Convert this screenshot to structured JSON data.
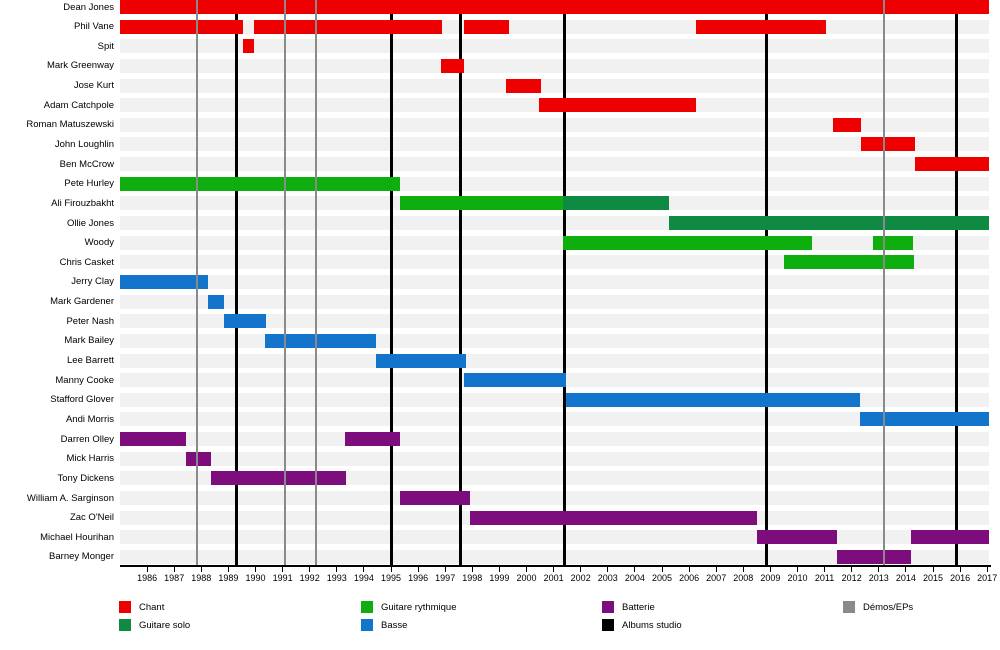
{
  "chart_data": {
    "type": "timeline",
    "title": "",
    "x_axis": {
      "start": 1985,
      "end": 2017.08,
      "ticks": [
        1986,
        1987,
        1988,
        1989,
        1990,
        1991,
        1992,
        1993,
        1994,
        1995,
        1996,
        1997,
        1998,
        1999,
        2000,
        2001,
        2002,
        2003,
        2004,
        2005,
        2006,
        2007,
        2008,
        2009,
        2010,
        2011,
        2012,
        2013,
        2014,
        2015,
        2016,
        2017
      ]
    },
    "colors": {
      "chant": "#EE0000",
      "guitare_rythmique": "#0EAE0E",
      "guitare_solo": "#0E8A42",
      "basse": "#1374CC",
      "batterie": "#7D0C7D",
      "albums": "#000000",
      "demos": "#8A8A8A"
    },
    "members": [
      {
        "name": "Dean Jones",
        "segments": [
          [
            "chant",
            1985,
            2017.08
          ]
        ]
      },
      {
        "name": "Phil Vane",
        "segments": [
          [
            "chant",
            1985,
            1989.55
          ],
          [
            "chant",
            1989.95,
            1996.9
          ],
          [
            "chant",
            1997.7,
            1999.35
          ],
          [
            "chant",
            2006.25,
            2011.05
          ]
        ]
      },
      {
        "name": "Spit",
        "segments": [
          [
            "chant",
            1989.55,
            1989.95
          ]
        ]
      },
      {
        "name": "Mark Greenway",
        "segments": [
          [
            "chant",
            1996.85,
            1997.7
          ]
        ]
      },
      {
        "name": "Jose Kurt",
        "segments": [
          [
            "chant",
            1999.25,
            2000.55
          ]
        ]
      },
      {
        "name": "Adam Catchpole",
        "segments": [
          [
            "chant",
            2000.45,
            2006.25
          ]
        ]
      },
      {
        "name": "Roman Matuszewski",
        "segments": [
          [
            "chant",
            2011.3,
            2012.35
          ]
        ]
      },
      {
        "name": "John Loughlin",
        "segments": [
          [
            "chant",
            2012.35,
            2014.35
          ]
        ]
      },
      {
        "name": "Ben McCrow",
        "segments": [
          [
            "chant",
            2014.35,
            2017.08
          ]
        ]
      },
      {
        "name": "Pete Hurley",
        "segments": [
          [
            "guitare_rythmique",
            1985,
            1995.35
          ]
        ]
      },
      {
        "name": "Ali Firouzbakht",
        "segments": [
          [
            "guitare_rythmique",
            1995.35,
            2001.35
          ],
          [
            "guitare_solo",
            2001.35,
            2005.25
          ]
        ]
      },
      {
        "name": "Ollie Jones",
        "segments": [
          [
            "guitare_solo",
            2005.25,
            2017.08
          ]
        ]
      },
      {
        "name": "Woody",
        "segments": [
          [
            "guitare_rythmique",
            2001.35,
            2010.55
          ],
          [
            "guitare_rythmique",
            2012.8,
            2014.25
          ]
        ]
      },
      {
        "name": "Chris Casket",
        "segments": [
          [
            "guitare_rythmique",
            2009.5,
            2014.3
          ]
        ]
      },
      {
        "name": "Jerry Clay",
        "segments": [
          [
            "basse",
            1985,
            1988.25
          ]
        ]
      },
      {
        "name": "Mark Gardener",
        "segments": [
          [
            "basse",
            1988.25,
            1988.85
          ]
        ]
      },
      {
        "name": "Peter Nash",
        "segments": [
          [
            "basse",
            1988.85,
            1990.4
          ]
        ]
      },
      {
        "name": "Mark Bailey",
        "segments": [
          [
            "basse",
            1990.35,
            1994.45
          ]
        ]
      },
      {
        "name": "Lee Barrett",
        "segments": [
          [
            "basse",
            1994.45,
            1997.75
          ]
        ]
      },
      {
        "name": "Manny Cooke",
        "segments": [
          [
            "basse",
            1997.7,
            2001.45
          ]
        ]
      },
      {
        "name": "Stafford Glover",
        "segments": [
          [
            "basse",
            2001.45,
            2012.3
          ]
        ]
      },
      {
        "name": "Andi Morris",
        "segments": [
          [
            "basse",
            2012.3,
            2017.08
          ]
        ]
      },
      {
        "name": "Darren Olley",
        "segments": [
          [
            "batterie",
            1985,
            1987.45
          ],
          [
            "batterie",
            1993.3,
            1995.35
          ]
        ]
      },
      {
        "name": "Mick Harris",
        "segments": [
          [
            "batterie",
            1987.45,
            1988.35
          ]
        ]
      },
      {
        "name": "Tony Dickens",
        "segments": [
          [
            "batterie",
            1988.35,
            1993.35
          ]
        ]
      },
      {
        "name": "William A. Sarginson",
        "segments": [
          [
            "batterie",
            1995.35,
            1997.9
          ]
        ]
      },
      {
        "name": "Zac O'Neil",
        "segments": [
          [
            "batterie",
            1997.9,
            2008.5
          ]
        ]
      },
      {
        "name": "Michael Hourihan",
        "segments": [
          [
            "batterie",
            2008.5,
            2011.45
          ],
          [
            "batterie",
            2014.2,
            2017.08
          ]
        ]
      },
      {
        "name": "Barney Monger",
        "segments": [
          [
            "batterie",
            2011.45,
            2014.2
          ]
        ]
      }
    ],
    "event_lines": {
      "albums": [
        1989.3,
        1995.0,
        1997.55,
        2001.4,
        2008.85,
        2015.85
      ],
      "demos": [
        1987.85,
        1991.1,
        1992.25,
        2013.2
      ]
    },
    "legend": [
      {
        "label": "Chant",
        "role": "chant",
        "col": 0,
        "row": 0
      },
      {
        "label": "Guitare solo",
        "role": "guitare_solo",
        "col": 0,
        "row": 1
      },
      {
        "label": "Guitare rythmique",
        "role": "guitare_rythmique",
        "col": 1,
        "row": 0
      },
      {
        "label": "Basse",
        "role": "basse",
        "col": 1,
        "row": 1
      },
      {
        "label": "Batterie",
        "role": "batterie",
        "col": 2,
        "row": 0
      },
      {
        "label": "Albums studio",
        "role": "albums",
        "col": 2,
        "row": 1
      },
      {
        "label": "Démos/EPs",
        "role": "demos",
        "col": 3,
        "row": 0
      }
    ]
  }
}
